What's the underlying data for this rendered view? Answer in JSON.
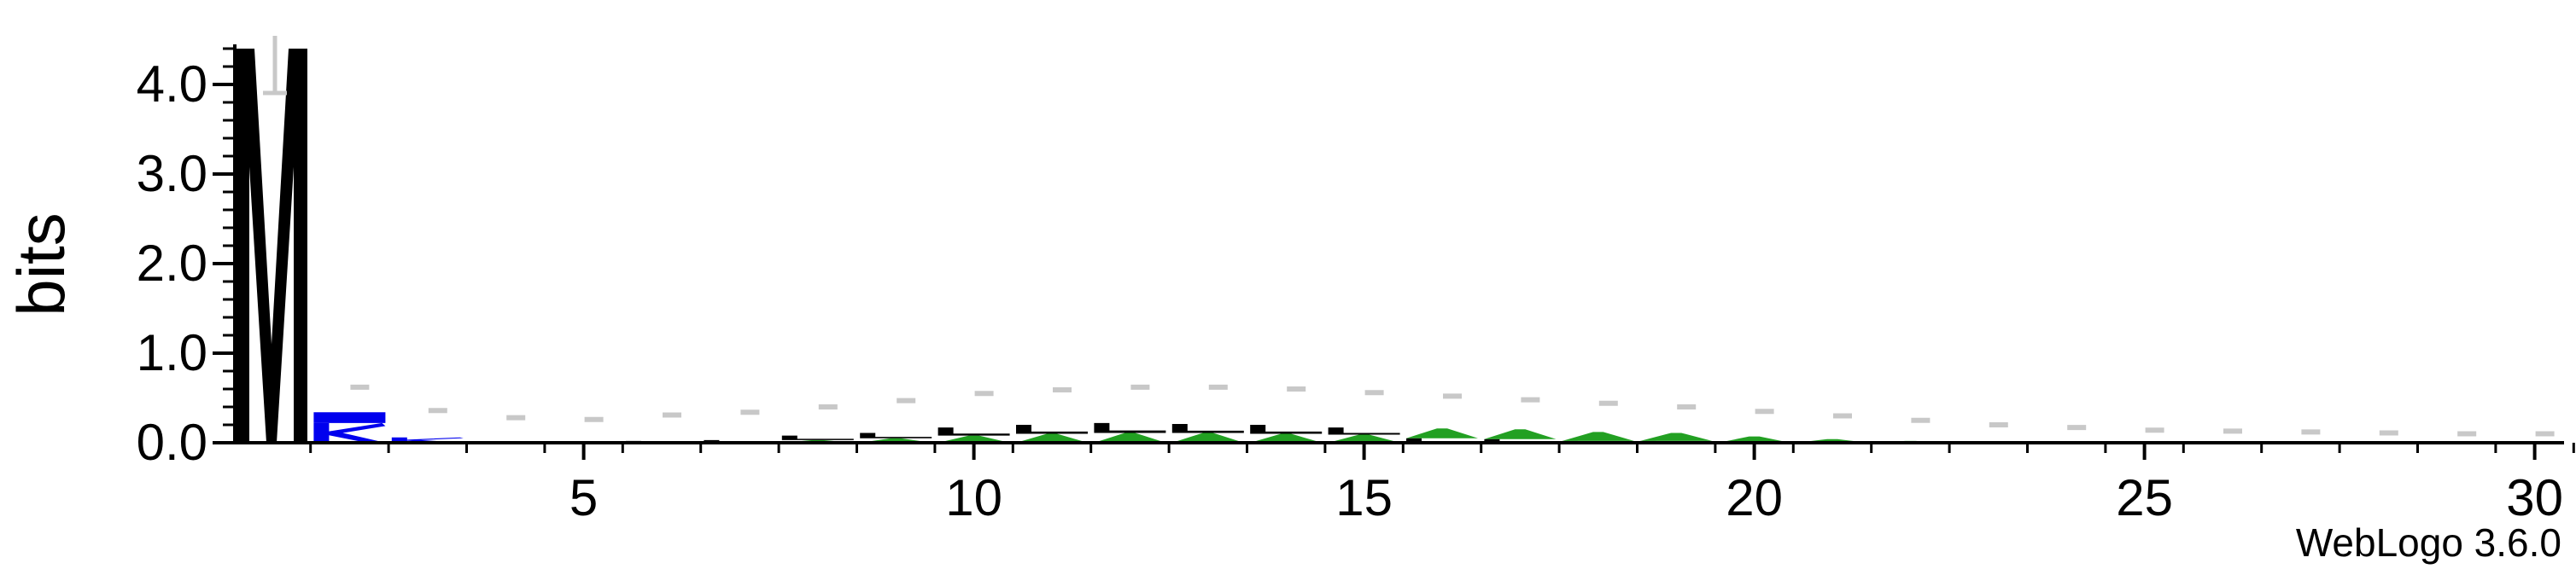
{
  "chart_data": {
    "type": "sequence-logo",
    "ylabel": "bits",
    "ylim": [
      0,
      4.5
    ],
    "y_ticks": [
      {
        "value": 0.0,
        "label": "0.0"
      },
      {
        "value": 1.0,
        "label": "1.0"
      },
      {
        "value": 2.0,
        "label": "2.0"
      },
      {
        "value": 3.0,
        "label": "3.0"
      },
      {
        "value": 4.0,
        "label": "4.0"
      }
    ],
    "y_minor_step": 0.2,
    "x_range": [
      1,
      30
    ],
    "x_ticks": [
      {
        "value": 5,
        "label": "5"
      },
      {
        "value": 10,
        "label": "10"
      },
      {
        "value": 15,
        "label": "15"
      },
      {
        "value": 20,
        "label": "20"
      },
      {
        "value": 25,
        "label": "25"
      },
      {
        "value": 30,
        "label": "30"
      }
    ],
    "colors": {
      "black": "#000000",
      "blue": "#0000ee",
      "green": "#22a022",
      "gray": "#c8c8c8",
      "axis": "#000000"
    },
    "columns": [
      {
        "pos": 1,
        "stack": [
          {
            "letter": "M",
            "color": "black",
            "bits": 4.4
          }
        ]
      },
      {
        "pos": 2,
        "stack": [
          {
            "letter": "K",
            "color": "blue",
            "bits": 0.22
          },
          {
            "letter": "R",
            "color": "blue",
            "bits": 0.12
          }
        ]
      },
      {
        "pos": 3,
        "stack": [
          {
            "letter": "K",
            "color": "blue",
            "bits": 0.06
          }
        ]
      },
      {
        "pos": 4,
        "stack": []
      },
      {
        "pos": 5,
        "stack": []
      },
      {
        "pos": 6,
        "stack": [
          {
            "letter": "L",
            "color": "black",
            "bits": 0.02
          }
        ]
      },
      {
        "pos": 7,
        "stack": [
          {
            "letter": "L",
            "color": "black",
            "bits": 0.03
          }
        ]
      },
      {
        "pos": 8,
        "stack": [
          {
            "letter": "A",
            "color": "green",
            "bits": 0.03
          },
          {
            "letter": "L",
            "color": "black",
            "bits": 0.05
          }
        ]
      },
      {
        "pos": 9,
        "stack": [
          {
            "letter": "A",
            "color": "green",
            "bits": 0.05
          },
          {
            "letter": "L",
            "color": "black",
            "bits": 0.06
          }
        ]
      },
      {
        "pos": 10,
        "stack": [
          {
            "letter": "A",
            "color": "green",
            "bits": 0.08
          },
          {
            "letter": "L",
            "color": "black",
            "bits": 0.09
          }
        ]
      },
      {
        "pos": 11,
        "stack": [
          {
            "letter": "A",
            "color": "green",
            "bits": 0.1
          },
          {
            "letter": "L",
            "color": "black",
            "bits": 0.1
          }
        ]
      },
      {
        "pos": 12,
        "stack": [
          {
            "letter": "A",
            "color": "green",
            "bits": 0.11
          },
          {
            "letter": "L",
            "color": "black",
            "bits": 0.11
          }
        ]
      },
      {
        "pos": 13,
        "stack": [
          {
            "letter": "A",
            "color": "green",
            "bits": 0.11
          },
          {
            "letter": "L",
            "color": "black",
            "bits": 0.1
          }
        ]
      },
      {
        "pos": 14,
        "stack": [
          {
            "letter": "A",
            "color": "green",
            "bits": 0.1
          },
          {
            "letter": "L",
            "color": "black",
            "bits": 0.1
          }
        ]
      },
      {
        "pos": 15,
        "stack": [
          {
            "letter": "A",
            "color": "green",
            "bits": 0.09
          },
          {
            "letter": "L",
            "color": "black",
            "bits": 0.08
          }
        ]
      },
      {
        "pos": 16,
        "stack": [
          {
            "letter": "L",
            "color": "black",
            "bits": 0.05
          },
          {
            "letter": "A",
            "color": "green",
            "bits": 0.11
          }
        ]
      },
      {
        "pos": 17,
        "stack": [
          {
            "letter": "L",
            "color": "black",
            "bits": 0.04
          },
          {
            "letter": "A",
            "color": "green",
            "bits": 0.11
          }
        ]
      },
      {
        "pos": 18,
        "stack": [
          {
            "letter": "L",
            "color": "black",
            "bits": 0.02
          },
          {
            "letter": "A",
            "color": "green",
            "bits": 0.1
          }
        ]
      },
      {
        "pos": 19,
        "stack": [
          {
            "letter": "L",
            "color": "black",
            "bits": 0.02
          },
          {
            "letter": "A",
            "color": "green",
            "bits": 0.09
          }
        ]
      },
      {
        "pos": 20,
        "stack": [
          {
            "letter": "A",
            "color": "green",
            "bits": 0.07
          }
        ]
      },
      {
        "pos": 21,
        "stack": [
          {
            "letter": "A",
            "color": "green",
            "bits": 0.04
          }
        ]
      },
      {
        "pos": 22,
        "stack": [
          {
            "letter": "A",
            "color": "green",
            "bits": 0.02
          }
        ]
      },
      {
        "pos": 23,
        "stack": []
      },
      {
        "pos": 24,
        "stack": []
      },
      {
        "pos": 25,
        "stack": []
      },
      {
        "pos": 26,
        "stack": []
      },
      {
        "pos": 27,
        "stack": []
      },
      {
        "pos": 28,
        "stack": []
      },
      {
        "pos": 29,
        "stack": []
      },
      {
        "pos": 30,
        "stack": []
      }
    ],
    "error_bars": [
      {
        "pos": 1,
        "bits": 4.4
      },
      {
        "pos": 2,
        "bits": 0.62
      },
      {
        "pos": 3,
        "bits": 0.36
      },
      {
        "pos": 4,
        "bits": 0.28
      },
      {
        "pos": 5,
        "bits": 0.26
      },
      {
        "pos": 6,
        "bits": 0.31
      },
      {
        "pos": 7,
        "bits": 0.34
      },
      {
        "pos": 8,
        "bits": 0.4
      },
      {
        "pos": 9,
        "bits": 0.47
      },
      {
        "pos": 10,
        "bits": 0.55
      },
      {
        "pos": 11,
        "bits": 0.59
      },
      {
        "pos": 12,
        "bits": 0.62
      },
      {
        "pos": 13,
        "bits": 0.62
      },
      {
        "pos": 14,
        "bits": 0.6
      },
      {
        "pos": 15,
        "bits": 0.56
      },
      {
        "pos": 16,
        "bits": 0.52
      },
      {
        "pos": 17,
        "bits": 0.48
      },
      {
        "pos": 18,
        "bits": 0.44
      },
      {
        "pos": 19,
        "bits": 0.4
      },
      {
        "pos": 20,
        "bits": 0.35
      },
      {
        "pos": 21,
        "bits": 0.3
      },
      {
        "pos": 22,
        "bits": 0.25
      },
      {
        "pos": 23,
        "bits": 0.2
      },
      {
        "pos": 24,
        "bits": 0.17
      },
      {
        "pos": 25,
        "bits": 0.14
      },
      {
        "pos": 26,
        "bits": 0.13
      },
      {
        "pos": 27,
        "bits": 0.12
      },
      {
        "pos": 28,
        "bits": 0.11
      },
      {
        "pos": 29,
        "bits": 0.1
      },
      {
        "pos": 30,
        "bits": 0.1
      }
    ]
  },
  "footer": {
    "credit": "WebLogo 3.6.0"
  }
}
